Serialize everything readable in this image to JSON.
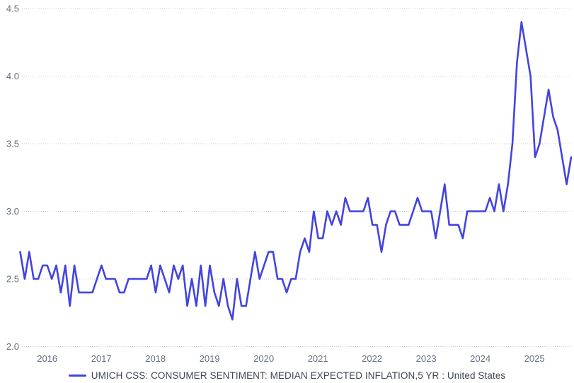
{
  "chart_data": {
    "type": "line",
    "title": "",
    "xlabel": "",
    "ylabel": "",
    "x_tick_labels": [
      "2016",
      "2017",
      "2018",
      "2019",
      "2020",
      "2021",
      "2022",
      "2023",
      "2024",
      "2025"
    ],
    "y_tick_labels": [
      "4.5",
      "4.0",
      "3.5",
      "3.0",
      "2.5",
      "2.0"
    ],
    "ylim": [
      2.0,
      4.5
    ],
    "grid": "horizontal-dotted-lines",
    "legend_position": "bottom-center",
    "series": [
      {
        "name": "UMICH CSS: CONSUMER SENTIMENT: MEDIAN EXPECTED INFLATION,5 YR : United States",
        "color": "#4244e0",
        "frequency": "monthly",
        "x_start": "2015-07",
        "x_end": "2025-09",
        "values": [
          2.7,
          2.5,
          2.7,
          2.5,
          2.5,
          2.6,
          2.6,
          2.5,
          2.6,
          2.4,
          2.6,
          2.3,
          2.6,
          2.4,
          2.4,
          2.4,
          2.4,
          2.5,
          2.6,
          2.5,
          2.5,
          2.5,
          2.4,
          2.4,
          2.5,
          2.5,
          2.5,
          2.5,
          2.5,
          2.6,
          2.4,
          2.6,
          2.5,
          2.4,
          2.6,
          2.5,
          2.6,
          2.3,
          2.5,
          2.3,
          2.6,
          2.3,
          2.6,
          2.4,
          2.3,
          2.5,
          2.3,
          2.2,
          2.5,
          2.3,
          2.3,
          2.5,
          2.7,
          2.5,
          2.6,
          2.7,
          2.7,
          2.5,
          2.5,
          2.4,
          2.5,
          2.5,
          2.7,
          2.8,
          2.7,
          3.0,
          2.8,
          2.8,
          3.0,
          2.9,
          3.0,
          2.9,
          3.1,
          3.0,
          3.0,
          3.0,
          3.0,
          3.1,
          2.9,
          2.9,
          2.7,
          2.9,
          3.0,
          3.0,
          2.9,
          2.9,
          2.9,
          3.0,
          3.1,
          3.0,
          3.0,
          3.0,
          2.8,
          3.0,
          3.2,
          2.9,
          2.9,
          2.9,
          2.8,
          3.0,
          3.0,
          3.0,
          3.0,
          3.0,
          3.1,
          3.0,
          3.2,
          3.0,
          3.2,
          3.5,
          4.1,
          4.4,
          4.2,
          4.0,
          3.4,
          3.5,
          3.7,
          3.9,
          3.7,
          3.6,
          3.4,
          3.2,
          3.4
        ]
      }
    ]
  },
  "legend": {
    "label": "UMICH CSS: CONSUMER SENTIMENT: MEDIAN EXPECTED INFLATION,5 YR : United States"
  },
  "colors": {
    "line": "#4244e0",
    "grid": "#cbcbcb",
    "axis_text": "#64707d",
    "legend_text": "#3f4650",
    "background": "#ffffff"
  }
}
